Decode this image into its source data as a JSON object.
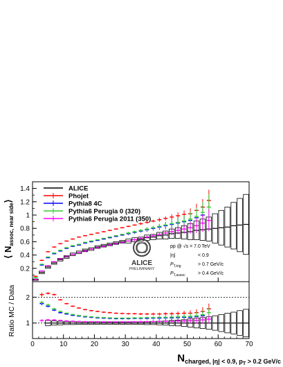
{
  "chart_data": [
    {
      "type": "line",
      "panel": "main",
      "ylabel_main": "⟨ N",
      "ylabel_sub": "assoc, near side",
      "ylabel_close": "⟩",
      "xlim": [
        0,
        70
      ],
      "ylim": [
        0,
        1.5
      ],
      "yticks": [
        "0.2",
        "0.4",
        "0.6",
        "0.8",
        "1",
        "1.2",
        "1.4"
      ],
      "legend_position": "top-left",
      "series": [
        {
          "name": "ALICE",
          "color": "#000000",
          "style": "boxes",
          "x": [
            1,
            3,
            5,
            7,
            9,
            11,
            13,
            15,
            17,
            19,
            21,
            23,
            25,
            27,
            29,
            31,
            33,
            35,
            37,
            39,
            41,
            43,
            45,
            47,
            49,
            51,
            53,
            55,
            57,
            59,
            61,
            63,
            65,
            67,
            69
          ],
          "y": [
            0.03,
            0.14,
            0.22,
            0.28,
            0.33,
            0.37,
            0.41,
            0.44,
            0.47,
            0.49,
            0.52,
            0.54,
            0.56,
            0.58,
            0.6,
            0.61,
            0.63,
            0.64,
            0.66,
            0.67,
            0.69,
            0.7,
            0.72,
            0.73,
            0.74,
            0.75,
            0.77,
            0.78,
            0.79,
            0.8,
            0.81,
            0.82,
            0.84,
            0.85,
            0.86
          ],
          "err": [
            0.01,
            0.02,
            0.02,
            0.02,
            0.02,
            0.02,
            0.02,
            0.02,
            0.02,
            0.02,
            0.02,
            0.02,
            0.02,
            0.02,
            0.02,
            0.03,
            0.03,
            0.03,
            0.04,
            0.04,
            0.05,
            0.06,
            0.07,
            0.08,
            0.1,
            0.12,
            0.14,
            0.16,
            0.18,
            0.22,
            0.26,
            0.3,
            0.35,
            0.4,
            0.45
          ]
        },
        {
          "name": "Phojet",
          "color": "#ff0000",
          "x": [
            1,
            3,
            5,
            7,
            9,
            11,
            13,
            15,
            17,
            19,
            21,
            23,
            25,
            27,
            29,
            31,
            33,
            35,
            37,
            39,
            41,
            43,
            45,
            47,
            49,
            51,
            53,
            55,
            57
          ],
          "y": [
            0.08,
            0.32,
            0.45,
            0.52,
            0.57,
            0.61,
            0.64,
            0.67,
            0.69,
            0.71,
            0.73,
            0.75,
            0.77,
            0.79,
            0.81,
            0.83,
            0.85,
            0.87,
            0.89,
            0.91,
            0.93,
            0.95,
            0.97,
            0.99,
            1.01,
            1.02,
            1.07,
            1.12,
            1.22
          ],
          "err": [
            0.01,
            0.01,
            0.01,
            0.01,
            0.01,
            0.01,
            0.01,
            0.01,
            0.01,
            0.01,
            0.01,
            0.01,
            0.01,
            0.01,
            0.01,
            0.01,
            0.01,
            0.02,
            0.02,
            0.02,
            0.03,
            0.03,
            0.04,
            0.05,
            0.06,
            0.08,
            0.1,
            0.12,
            0.16
          ]
        },
        {
          "name": "Pythia8 4C",
          "color": "#0000ff",
          "x": [
            1,
            3,
            5,
            7,
            9,
            11,
            13,
            15,
            17,
            19,
            21,
            23,
            25,
            27,
            29,
            31,
            33,
            35,
            37,
            39,
            41,
            43,
            45,
            47,
            49,
            51,
            53,
            55
          ],
          "y": [
            0.06,
            0.25,
            0.36,
            0.42,
            0.46,
            0.5,
            0.53,
            0.55,
            0.58,
            0.6,
            0.62,
            0.64,
            0.66,
            0.68,
            0.7,
            0.72,
            0.74,
            0.76,
            0.78,
            0.8,
            0.82,
            0.84,
            0.86,
            0.88,
            0.9,
            0.92,
            0.96,
            1.0
          ],
          "err": [
            0.01,
            0.01,
            0.01,
            0.01,
            0.01,
            0.01,
            0.01,
            0.01,
            0.01,
            0.01,
            0.01,
            0.01,
            0.01,
            0.01,
            0.01,
            0.02,
            0.02,
            0.02,
            0.03,
            0.03,
            0.04,
            0.05,
            0.06,
            0.07,
            0.09,
            0.11,
            0.13,
            0.16
          ]
        },
        {
          "name": "Pythia6 Perugia 0 (320)",
          "color": "#33cc33",
          "x": [
            1,
            3,
            5,
            7,
            9,
            11,
            13,
            15,
            17,
            19,
            21,
            23,
            25,
            27,
            29,
            31,
            33,
            35,
            37,
            39,
            41,
            43,
            45,
            47,
            49,
            51,
            53,
            55,
            57
          ],
          "y": [
            0.06,
            0.26,
            0.37,
            0.43,
            0.47,
            0.51,
            0.54,
            0.56,
            0.59,
            0.61,
            0.63,
            0.65,
            0.67,
            0.69,
            0.71,
            0.73,
            0.75,
            0.77,
            0.79,
            0.81,
            0.83,
            0.85,
            0.87,
            0.89,
            0.91,
            0.94,
            0.98,
            1.04,
            1.12
          ],
          "err": [
            0.01,
            0.01,
            0.01,
            0.01,
            0.01,
            0.01,
            0.01,
            0.01,
            0.01,
            0.01,
            0.01,
            0.01,
            0.01,
            0.01,
            0.01,
            0.02,
            0.02,
            0.02,
            0.03,
            0.03,
            0.04,
            0.05,
            0.06,
            0.07,
            0.09,
            0.11,
            0.13,
            0.16,
            0.2
          ]
        },
        {
          "name": "Pythia6 Perugia 2011 (350)",
          "color": "#ff00ff",
          "x": [
            1,
            3,
            5,
            7,
            9,
            11,
            13,
            15,
            17,
            19,
            21,
            23,
            25,
            27,
            29,
            31,
            33,
            35,
            37,
            39,
            41,
            43,
            45,
            47,
            49,
            51,
            53,
            55,
            57
          ],
          "y": [
            0.03,
            0.16,
            0.24,
            0.3,
            0.34,
            0.38,
            0.41,
            0.44,
            0.46,
            0.49,
            0.51,
            0.53,
            0.55,
            0.57,
            0.59,
            0.61,
            0.63,
            0.65,
            0.67,
            0.69,
            0.71,
            0.73,
            0.75,
            0.77,
            0.79,
            0.81,
            0.84,
            0.88,
            0.92
          ],
          "err": [
            0.01,
            0.01,
            0.01,
            0.01,
            0.01,
            0.01,
            0.01,
            0.01,
            0.01,
            0.01,
            0.01,
            0.01,
            0.01,
            0.01,
            0.01,
            0.01,
            0.02,
            0.02,
            0.02,
            0.03,
            0.03,
            0.04,
            0.05,
            0.06,
            0.07,
            0.09,
            0.11,
            0.13,
            0.16
          ]
        }
      ],
      "annotations": {
        "energy": "pp @ √s = 7.0 TeV",
        "eta_label": "|η|",
        "eta_value": "< 0.9",
        "pt_trig_label": "P",
        "pt_trig_sub": "T,trig",
        "pt_trig_value": "> 0.7 GeV/c",
        "pt_assoc_label": "P",
        "pt_assoc_sub": "T,assoc",
        "pt_assoc_value": "> 0.4 GeV/c",
        "logo_text": "ALICE",
        "logo_sub": "PRELIMINARY"
      }
    },
    {
      "type": "line",
      "panel": "ratio",
      "ylabel": "Ratio MC / Data",
      "ylim": [
        0.4,
        2.6
      ],
      "yticks": [
        "1",
        "2"
      ],
      "dashed_lines": [
        1,
        2
      ],
      "xticks": [
        "0",
        "10",
        "20",
        "30",
        "40",
        "50",
        "60",
        "70"
      ],
      "xlabel_main": "N",
      "xlabel_sub": "charged, |η| < 0.9, p",
      "xlabel_sub2": "T",
      "xlabel_tail": " > 0.2 GeV/c",
      "series": [
        {
          "name": "ALICE",
          "color": "#000000",
          "style": "boxes",
          "x": [
            5,
            7,
            9,
            11,
            13,
            15,
            17,
            19,
            21,
            23,
            25,
            27,
            29,
            31,
            33,
            35,
            37,
            39,
            41,
            43,
            45,
            47,
            49,
            51,
            53,
            55,
            57,
            59,
            61,
            63,
            65,
            67,
            69
          ],
          "y": [
            1,
            1,
            1,
            1,
            1,
            1,
            1,
            1,
            1,
            1,
            1,
            1,
            1,
            1,
            1,
            1,
            1,
            1,
            1,
            1,
            1,
            1,
            1,
            1,
            1,
            1,
            1,
            1,
            1,
            1,
            1,
            1,
            1
          ],
          "err": [
            0.1,
            0.08,
            0.07,
            0.06,
            0.06,
            0.05,
            0.05,
            0.05,
            0.05,
            0.05,
            0.05,
            0.05,
            0.05,
            0.05,
            0.05,
            0.05,
            0.06,
            0.06,
            0.07,
            0.08,
            0.1,
            0.11,
            0.13,
            0.16,
            0.19,
            0.21,
            0.24,
            0.28,
            0.33,
            0.38,
            0.42,
            0.48,
            0.53
          ]
        },
        {
          "name": "Phojet",
          "color": "#ff0000",
          "x": [
            3,
            5,
            7,
            9,
            11,
            13,
            15,
            17,
            19,
            21,
            23,
            25,
            27,
            29,
            31,
            33,
            35,
            37,
            39,
            41,
            43,
            45,
            47,
            49,
            51,
            53,
            55,
            57
          ],
          "y": [
            2.1,
            2.15,
            2.1,
            1.9,
            1.75,
            1.65,
            1.58,
            1.52,
            1.48,
            1.45,
            1.42,
            1.4,
            1.38,
            1.37,
            1.36,
            1.36,
            1.35,
            1.35,
            1.35,
            1.35,
            1.36,
            1.36,
            1.37,
            1.38,
            1.38,
            1.4,
            1.45,
            1.55
          ],
          "err": [
            0.08,
            0.05,
            0.04,
            0.03,
            0.03,
            0.03,
            0.03,
            0.03,
            0.03,
            0.03,
            0.03,
            0.03,
            0.03,
            0.03,
            0.03,
            0.03,
            0.04,
            0.04,
            0.05,
            0.05,
            0.06,
            0.07,
            0.08,
            0.09,
            0.11,
            0.13,
            0.16,
            0.2
          ]
        },
        {
          "name": "Pythia8 4C",
          "color": "#0000ff",
          "x": [
            3,
            5,
            7,
            9,
            11,
            13,
            15,
            17,
            19,
            21,
            23,
            25,
            27,
            29,
            31,
            33,
            35,
            37,
            39,
            41,
            43,
            45,
            47,
            49,
            51,
            53,
            55
          ],
          "y": [
            1.75,
            1.65,
            1.5,
            1.4,
            1.35,
            1.3,
            1.27,
            1.24,
            1.22,
            1.2,
            1.19,
            1.18,
            1.17,
            1.17,
            1.17,
            1.18,
            1.18,
            1.18,
            1.19,
            1.19,
            1.2,
            1.2,
            1.21,
            1.22,
            1.22,
            1.25,
            1.28
          ],
          "err": [
            0.06,
            0.05,
            0.04,
            0.03,
            0.03,
            0.03,
            0.03,
            0.03,
            0.03,
            0.03,
            0.03,
            0.03,
            0.03,
            0.03,
            0.03,
            0.03,
            0.04,
            0.04,
            0.05,
            0.06,
            0.07,
            0.08,
            0.09,
            0.1,
            0.12,
            0.14,
            0.17
          ]
        },
        {
          "name": "Pythia6 Perugia 0 (320)",
          "color": "#33cc33",
          "x": [
            3,
            5,
            7,
            9,
            11,
            13,
            15,
            17,
            19,
            21,
            23,
            25,
            27,
            29,
            31,
            33,
            35,
            37,
            39,
            41,
            43,
            45,
            47,
            49,
            51,
            53,
            55,
            57
          ],
          "y": [
            1.8,
            1.7,
            1.55,
            1.45,
            1.38,
            1.33,
            1.29,
            1.26,
            1.24,
            1.22,
            1.21,
            1.2,
            1.19,
            1.19,
            1.19,
            1.2,
            1.2,
            1.21,
            1.21,
            1.22,
            1.22,
            1.23,
            1.24,
            1.25,
            1.26,
            1.28,
            1.32,
            1.4
          ],
          "err": [
            0.06,
            0.05,
            0.04,
            0.03,
            0.03,
            0.03,
            0.03,
            0.03,
            0.03,
            0.03,
            0.03,
            0.03,
            0.03,
            0.03,
            0.03,
            0.03,
            0.04,
            0.04,
            0.05,
            0.06,
            0.07,
            0.08,
            0.09,
            0.1,
            0.12,
            0.14,
            0.17,
            0.2
          ]
        },
        {
          "name": "Pythia6 Perugia 2011 (350)",
          "color": "#ff00ff",
          "x": [
            3,
            5,
            7,
            9,
            11,
            13,
            15,
            17,
            19,
            21,
            23,
            25,
            27,
            29,
            31,
            33,
            35,
            37,
            39,
            41,
            43,
            45,
            47,
            49,
            51,
            53,
            55,
            57
          ],
          "y": [
            1.1,
            1.12,
            1.12,
            1.1,
            1.08,
            1.07,
            1.06,
            1.05,
            1.05,
            1.05,
            1.04,
            1.04,
            1.04,
            1.04,
            1.04,
            1.05,
            1.05,
            1.05,
            1.06,
            1.06,
            1.07,
            1.07,
            1.08,
            1.08,
            1.09,
            1.1,
            1.12,
            1.15
          ],
          "err": [
            0.05,
            0.04,
            0.03,
            0.03,
            0.03,
            0.03,
            0.03,
            0.03,
            0.03,
            0.03,
            0.03,
            0.03,
            0.03,
            0.03,
            0.03,
            0.03,
            0.04,
            0.04,
            0.05,
            0.05,
            0.06,
            0.07,
            0.08,
            0.09,
            0.1,
            0.12,
            0.14,
            0.17
          ]
        }
      ]
    }
  ]
}
